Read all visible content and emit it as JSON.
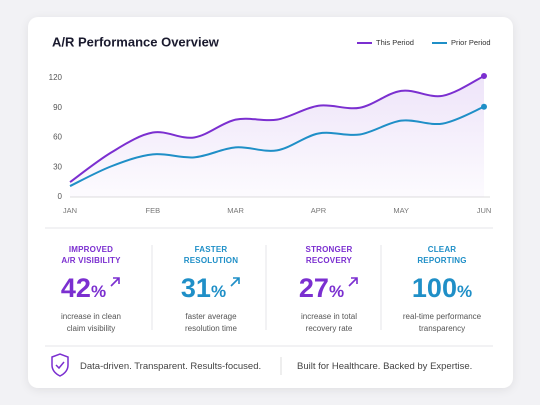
{
  "chart_data": {
    "type": "line",
    "title": "A/R Performance Overview",
    "categories": [
      "JAN",
      null,
      "FEB",
      null,
      "MAR",
      null,
      "APR",
      null,
      "MAY",
      null,
      "JUN"
    ],
    "series": [
      {
        "name": "This Period",
        "color": "#7b2fd0",
        "values": [
          15,
          45,
          65,
          60,
          78,
          78,
          92,
          90,
          107,
          102,
          122
        ]
      },
      {
        "name": "Prior Period",
        "color": "#1f8fc7",
        "values": [
          11,
          31,
          43,
          40,
          50,
          47,
          64,
          63,
          77,
          74,
          91
        ]
      }
    ],
    "ylim": [
      0,
      125
    ],
    "yticks": [
      0,
      30,
      60,
      90,
      120
    ],
    "grid": false,
    "legend": "top-right"
  },
  "stats": [
    {
      "heading": [
        "IMPROVED",
        "A/R VISIBILITY"
      ],
      "value": 42,
      "unit": "%",
      "description": [
        "increase in clean",
        "claim visibility"
      ],
      "color": "#7b2fd0"
    },
    {
      "heading": [
        "FASTER",
        "RESOLUTION"
      ],
      "value": 31,
      "unit": "%",
      "description": [
        "faster average",
        "resolution time"
      ],
      "color": "#1f8fc7"
    },
    {
      "heading": [
        "STRONGER",
        "RECOVERY"
      ],
      "value": 27,
      "unit": "%",
      "description": [
        "increase in total",
        "recovery rate"
      ],
      "color": "#7b2fd0"
    },
    {
      "heading": [
        "CLEAR",
        "REPORTING"
      ],
      "value": 100,
      "unit": "%",
      "description": [
        "real-time performance",
        "transparency"
      ],
      "color": "#1f8fc7"
    }
  ],
  "footer": {
    "left": "Data-driven. Transparent. Results-focused.",
    "right": "Built for Healthcare. Backed by Expertise."
  }
}
